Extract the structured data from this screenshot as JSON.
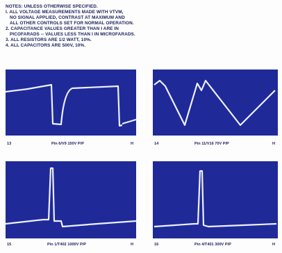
{
  "notes": {
    "title": "NOTES: UNLESS OTHERWISE SPECIFIED.",
    "lines": [
      "I. ALL VOLTAGE MEASUREMENTS MADE WITH VTVM,",
      "NO SIGNAL APPLIED, CONTRAST AT MAXIMUM AND",
      "ALL OTHER CONTROLS SET FOR NORMAL OPERATION.",
      "2. CAPACITANCE VALUES GREATER THAN I ARE IN",
      "PICOFARADS -- VALUES LESS THAN I IN MICROFARADS.",
      "3. ALL RESISTORS ARE 1/2 WATT, 10%.",
      "4. ALL CAPACITORS ARE 500V, 10%."
    ]
  },
  "waveforms": [
    {
      "number": "13",
      "caption": "Pin 6/V9 150V P/P",
      "sweep": "H"
    },
    {
      "number": "14",
      "caption": "Pin 11/V16 70V P/P",
      "sweep": "H"
    },
    {
      "number": "15",
      "caption": "Pin 1/T402 1000V P/P",
      "sweep": "H"
    },
    {
      "number": "16",
      "caption": "Pin 4/T401 300V P/P",
      "sweep": "H"
    }
  ]
}
